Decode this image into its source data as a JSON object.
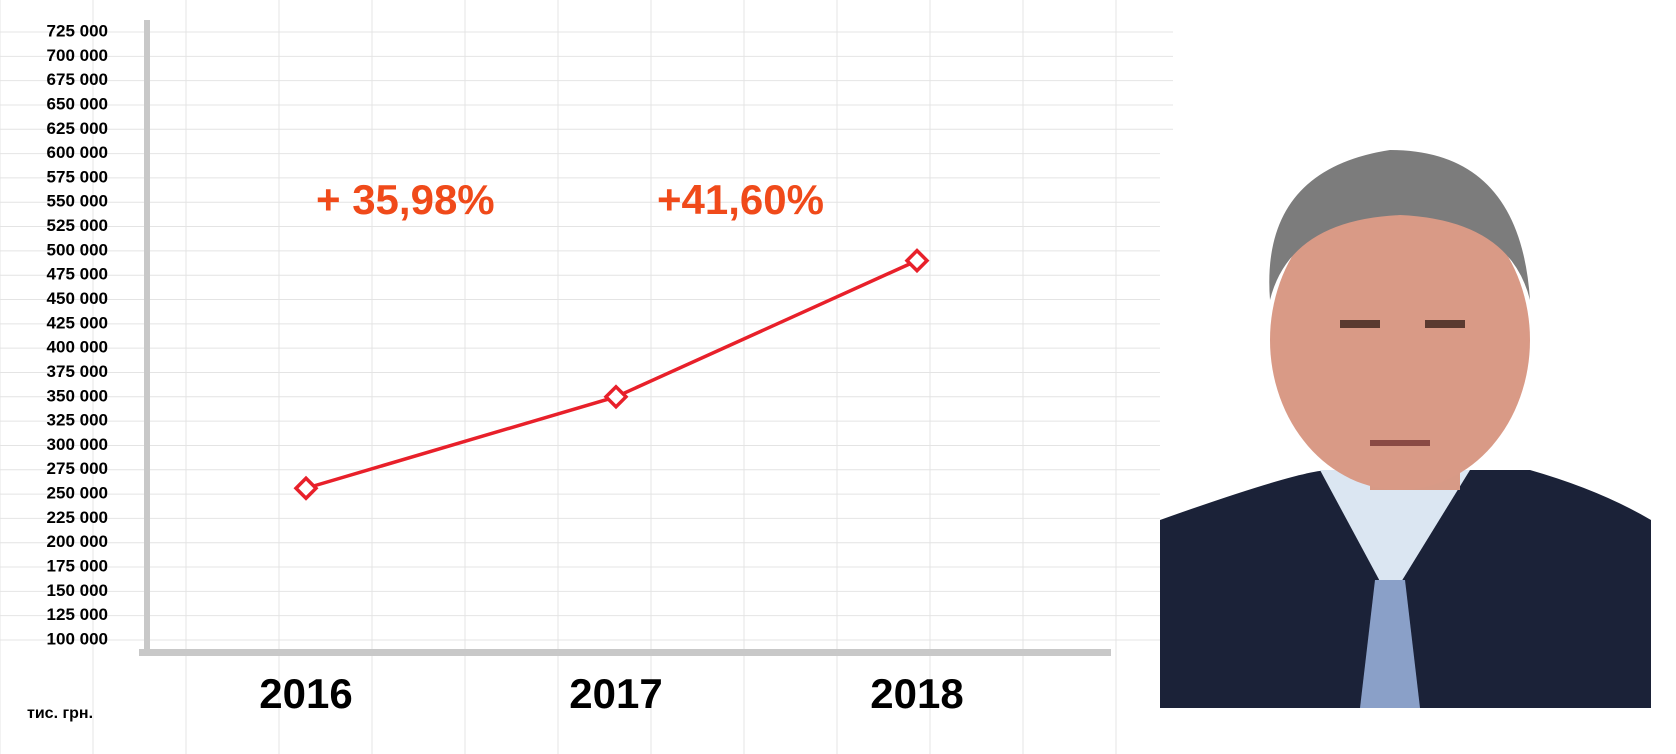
{
  "chart_data": {
    "type": "line",
    "unit_label": "тис. грн.",
    "categories": [
      "2016",
      "2017",
      "2018"
    ],
    "series": [
      {
        "name": null,
        "color": "#e8202a",
        "values": [
          256000,
          350000,
          490000
        ]
      }
    ],
    "annotations": [
      "+ 35,98%",
      "+41,60%"
    ],
    "ylim": [
      100000,
      725000
    ],
    "yticks": [
      {
        "value": 100000,
        "label": "100 000"
      },
      {
        "value": 125000,
        "label": "125 000"
      },
      {
        "value": 150000,
        "label": "150 000"
      },
      {
        "value": 175000,
        "label": "175 000"
      },
      {
        "value": 200000,
        "label": "200 000"
      },
      {
        "value": 225000,
        "label": "225 000"
      },
      {
        "value": 250000,
        "label": "250 000"
      },
      {
        "value": 275000,
        "label": "275 000"
      },
      {
        "value": 300000,
        "label": "300 000"
      },
      {
        "value": 325000,
        "label": "325 000"
      },
      {
        "value": 350000,
        "label": "350 000"
      },
      {
        "value": 375000,
        "label": "375 000"
      },
      {
        "value": 400000,
        "label": "400 000"
      },
      {
        "value": 425000,
        "label": "425 000"
      },
      {
        "value": 450000,
        "label": "450 000"
      },
      {
        "value": 475000,
        "label": "475 000"
      },
      {
        "value": 500000,
        "label": "500 000"
      },
      {
        "value": 525000,
        "label": "525 000"
      },
      {
        "value": 550000,
        "label": "550 000"
      },
      {
        "value": 575000,
        "label": "575 000"
      },
      {
        "value": 600000,
        "label": "600 000"
      },
      {
        "value": 625000,
        "label": "625 000"
      },
      {
        "value": 650000,
        "label": "650 000"
      },
      {
        "value": 675000,
        "label": "675 000"
      },
      {
        "value": 700000,
        "label": "700 000"
      },
      {
        "value": 725000,
        "label": "725 000"
      }
    ],
    "grid": true
  }
}
